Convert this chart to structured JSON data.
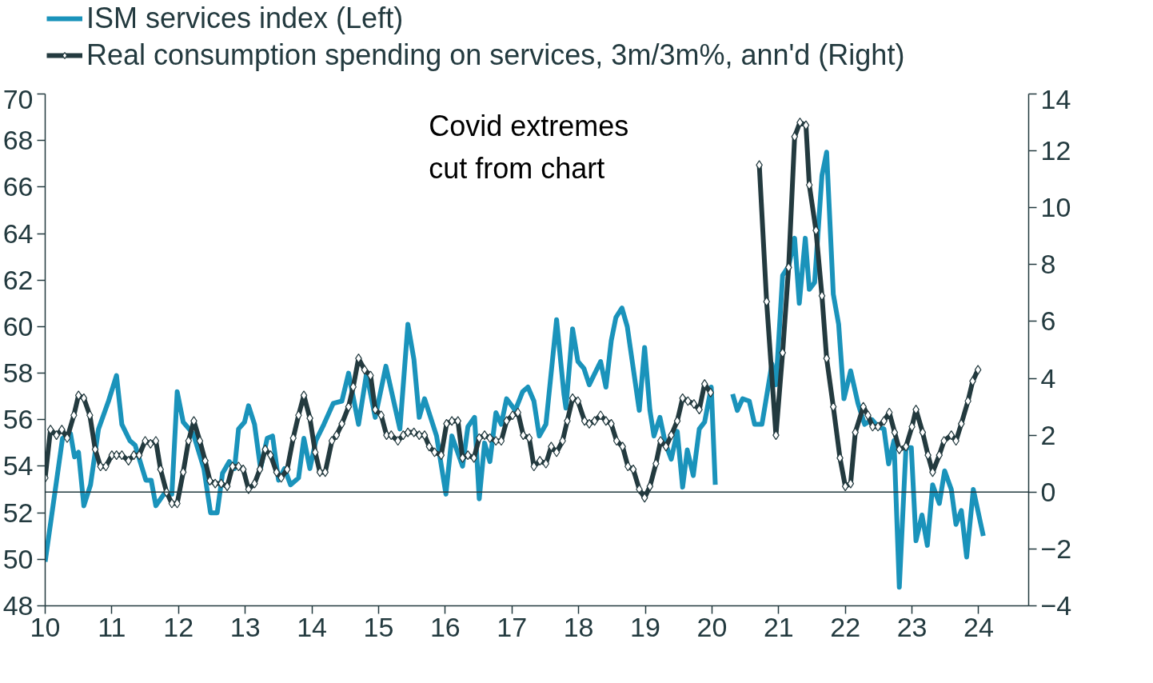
{
  "chart_data": {
    "type": "line",
    "annotations": [
      "Covid extremes\ncut from chart"
    ],
    "xlim": [
      10,
      24.75
    ],
    "xticks": [
      {
        "value": 10,
        "label": "10"
      },
      {
        "value": 11,
        "label": "11"
      },
      {
        "value": 12,
        "label": "12"
      },
      {
        "value": 13,
        "label": "13"
      },
      {
        "value": 14,
        "label": "14"
      },
      {
        "value": 15,
        "label": "15"
      },
      {
        "value": 16,
        "label": "16"
      },
      {
        "value": 17,
        "label": "17"
      },
      {
        "value": 18,
        "label": "18"
      },
      {
        "value": 19,
        "label": "19"
      },
      {
        "value": 20,
        "label": "20"
      },
      {
        "value": 21,
        "label": "21"
      },
      {
        "value": 22,
        "label": "22"
      },
      {
        "value": 23,
        "label": "23"
      },
      {
        "value": 24,
        "label": "24"
      }
    ],
    "ylim": [
      48,
      70
    ],
    "yticks": [
      48,
      50,
      52,
      54,
      56,
      58,
      60,
      62,
      64,
      66,
      68,
      70
    ],
    "y2lim": [
      -4,
      14
    ],
    "y2ticks": [
      -4,
      -2,
      0,
      2,
      4,
      6,
      8,
      10,
      12,
      14
    ],
    "ref_lines": [
      {
        "axis": "y2",
        "value": 0,
        "color": "#233a3f"
      }
    ],
    "legend": "top left",
    "grid": false,
    "line_style": "solid",
    "series": [
      {
        "name": "ISM services index (Left)",
        "color": "#1a93bb",
        "marker": "none",
        "x": [
          10.0,
          10.26,
          10.38,
          10.44,
          10.5,
          10.58,
          10.68,
          10.8,
          10.95,
          11.07,
          11.15,
          11.27,
          11.35,
          11.51,
          11.59,
          11.66,
          11.78,
          11.9,
          11.98,
          12.07,
          12.22,
          12.38,
          12.48,
          12.58,
          12.66,
          12.76,
          12.84,
          12.9,
          12.99,
          13.05,
          13.14,
          13.23,
          13.33,
          13.41,
          13.5,
          13.59,
          13.68,
          13.8,
          13.88,
          13.97,
          14.06,
          14.18,
          14.32,
          14.45,
          14.55,
          14.7,
          14.82,
          14.95,
          15.11,
          15.32,
          15.44,
          15.53,
          15.61,
          15.69,
          15.87,
          16.01,
          16.1,
          16.26,
          16.34,
          16.44,
          16.51,
          16.59,
          16.67,
          16.76,
          16.84,
          16.92,
          17.05,
          17.16,
          17.24,
          17.33,
          17.41,
          17.51,
          17.67,
          17.78,
          17.81,
          17.91,
          17.99,
          18.08,
          18.16,
          18.33,
          18.41,
          18.49,
          18.56,
          18.65,
          18.73,
          18.91,
          18.99,
          19.07,
          19.13,
          19.22,
          19.3,
          19.39,
          19.48,
          19.56,
          19.63,
          19.72,
          19.81,
          19.89,
          19.99,
          20.05,
          20.13,
          20.21,
          20.31,
          20.38,
          20.46,
          20.56,
          20.64,
          20.75,
          20.9,
          20.96,
          21.06,
          21.15,
          21.24,
          21.31,
          21.4,
          21.46,
          21.54,
          21.65,
          21.72,
          21.82,
          21.9,
          21.98,
          22.08,
          22.19,
          22.29,
          22.4,
          22.49,
          22.58,
          22.65,
          22.73,
          22.81,
          22.91,
          22.99,
          23.06,
          23.15,
          23.23,
          23.31,
          23.41,
          23.49,
          23.59,
          23.66,
          23.74,
          23.82,
          23.92,
          24.07
        ],
        "values": [
          49.9,
          55.2,
          55.4,
          54.4,
          54.6,
          52.3,
          53.2,
          55.6,
          56.8,
          57.9,
          55.8,
          55.1,
          54.9,
          53.4,
          53.4,
          52.3,
          52.8,
          52.8,
          57.2,
          55.9,
          55.4,
          53.9,
          52.0,
          52.0,
          53.7,
          54.2,
          53.9,
          55.6,
          55.9,
          56.6,
          55.8,
          53.9,
          55.2,
          55.3,
          53.4,
          53.9,
          53.2,
          53.5,
          55.2,
          53.9,
          55.1,
          55.8,
          56.7,
          56.8,
          58.0,
          55.8,
          58.0,
          56.1,
          58.3,
          55.6,
          60.1,
          58.6,
          56.1,
          56.9,
          55.3,
          52.8,
          55.3,
          54.0,
          55.7,
          56.1,
          52.6,
          55.0,
          54.2,
          56.3,
          55.8,
          56.9,
          56.4,
          57.2,
          57.4,
          56.8,
          55.3,
          55.8,
          60.3,
          57.1,
          56.5,
          59.9,
          58.5,
          58.2,
          57.5,
          58.5,
          57.4,
          59.4,
          60.4,
          60.8,
          60.0,
          56.4,
          59.1,
          56.4,
          55.3,
          56.1,
          55.0,
          54.3,
          55.5,
          53.1,
          54.7,
          53.6,
          55.6,
          55.9,
          57.4,
          53.2,
          null,
          null,
          57.1,
          56.4,
          56.9,
          56.8,
          55.8,
          55.8,
          58.4,
          57.5,
          62.2,
          62.6,
          63.8,
          61.0,
          63.8,
          61.6,
          61.9,
          66.5,
          67.5,
          61.4,
          60.1,
          56.9,
          58.1,
          56.7,
          55.8,
          56.0,
          55.7,
          55.6,
          54.1,
          55.1,
          48.8,
          54.8,
          54.8,
          50.8,
          51.9,
          50.6,
          53.2,
          52.4,
          53.8,
          53.0,
          51.5,
          52.1,
          50.1,
          53.0,
          51.0
        ]
      },
      {
        "name": "Real consumption spending on services, 3m/3m%, ann'd (Right)",
        "color": "#233a3f",
        "marker": "diamond",
        "axis": "y2",
        "x": [
          10.0,
          10.08,
          10.17,
          10.25,
          10.33,
          10.43,
          10.5,
          10.58,
          10.67,
          10.75,
          10.83,
          10.91,
          11.0,
          11.07,
          11.15,
          11.25,
          11.33,
          11.41,
          11.5,
          11.58,
          11.66,
          11.73,
          11.82,
          11.9,
          11.98,
          12.07,
          12.15,
          12.23,
          12.32,
          12.4,
          12.47,
          12.55,
          12.64,
          12.73,
          12.81,
          12.9,
          12.97,
          13.05,
          13.14,
          13.22,
          13.3,
          13.38,
          13.47,
          13.54,
          13.63,
          13.72,
          13.8,
          13.88,
          13.97,
          14.05,
          14.12,
          14.2,
          14.3,
          14.37,
          14.45,
          14.55,
          14.62,
          14.7,
          14.79,
          14.88,
          14.95,
          15.04,
          15.12,
          15.19,
          15.29,
          15.37,
          15.44,
          15.53,
          15.61,
          15.69,
          15.76,
          15.84,
          15.94,
          16.02,
          16.1,
          16.19,
          16.26,
          16.34,
          16.43,
          16.51,
          16.59,
          16.67,
          16.76,
          16.84,
          16.92,
          17.01,
          17.09,
          17.17,
          17.26,
          17.33,
          17.42,
          17.51,
          17.59,
          17.67,
          17.76,
          17.83,
          17.91,
          17.99,
          18.09,
          18.16,
          18.24,
          18.33,
          18.41,
          18.49,
          18.57,
          18.66,
          18.74,
          18.82,
          18.91,
          18.99,
          19.07,
          19.16,
          19.23,
          19.31,
          19.39,
          19.48,
          19.56,
          19.64,
          19.73,
          19.81,
          19.89,
          19.98,
          20.2,
          20.45,
          20.71,
          20.82,
          20.96,
          21.06,
          21.15,
          21.24,
          21.32,
          21.41,
          21.46,
          21.56,
          21.65,
          21.72,
          21.82,
          21.92,
          22.0,
          22.08,
          22.15,
          22.27,
          22.34,
          22.41,
          22.49,
          22.58,
          22.66,
          22.74,
          22.81,
          22.91,
          23.0,
          23.06,
          23.16,
          23.24,
          23.31,
          23.41,
          23.48,
          23.59,
          23.66,
          23.74,
          23.84,
          23.91,
          23.99
        ],
        "values": [
          0.5,
          2.2,
          2.0,
          2.2,
          1.9,
          2.7,
          3.4,
          3.3,
          2.7,
          1.5,
          0.9,
          0.9,
          1.3,
          1.3,
          1.3,
          1.1,
          1.3,
          1.3,
          1.8,
          1.7,
          1.8,
          0.8,
          0.0,
          -0.4,
          -0.4,
          0.7,
          1.8,
          2.5,
          1.8,
          1.1,
          0.4,
          0.3,
          0.3,
          0.2,
          0.9,
          0.9,
          0.8,
          0.1,
          0.3,
          0.8,
          1.5,
          1.3,
          0.7,
          0.5,
          0.8,
          1.9,
          2.7,
          3.4,
          2.6,
          1.4,
          0.7,
          0.7,
          1.8,
          2.0,
          2.4,
          3.0,
          3.7,
          4.7,
          4.3,
          4.1,
          2.9,
          2.7,
          2.0,
          2.0,
          1.8,
          2.0,
          2.1,
          2.1,
          2.0,
          2.0,
          1.6,
          1.4,
          1.3,
          2.4,
          2.5,
          2.5,
          1.2,
          1.3,
          1.2,
          1.9,
          2.0,
          1.9,
          1.8,
          1.8,
          2.5,
          2.7,
          2.8,
          2.0,
          1.9,
          0.9,
          1.1,
          1.0,
          1.6,
          1.4,
          1.8,
          2.5,
          3.3,
          3.2,
          2.5,
          2.4,
          2.5,
          2.7,
          2.5,
          2.4,
          1.8,
          1.6,
          0.9,
          0.8,
          0.1,
          -0.2,
          0.2,
          1.0,
          1.8,
          1.6,
          2.0,
          2.5,
          3.3,
          3.2,
          3.1,
          2.9,
          3.8,
          3.5,
          null,
          null,
          11.5,
          6.7,
          2.0,
          4.9,
          7.9,
          12.5,
          13.0,
          12.9,
          10.8,
          9.2,
          6.9,
          4.7,
          3.0,
          1.2,
          0.2,
          0.3,
          2.1,
          3.0,
          2.7,
          2.3,
          2.3,
          2.5,
          2.8,
          2.1,
          1.5,
          1.6,
          2.3,
          2.9,
          2.1,
          1.3,
          0.7,
          1.3,
          1.8,
          2.0,
          1.8,
          2.4,
          3.2,
          3.9,
          4.3
        ]
      }
    ]
  }
}
